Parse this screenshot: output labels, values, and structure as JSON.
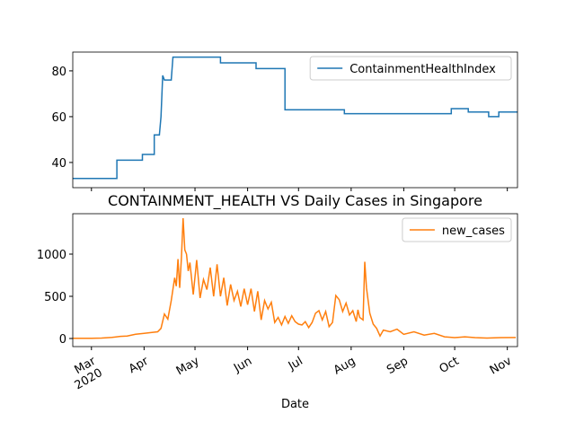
{
  "chart_data": [
    {
      "type": "line",
      "xlim": [
        "2020-02-19",
        "2020-11-07"
      ],
      "xticks": [
        "2020-03-01",
        "2020-04-01",
        "2020-05-01",
        "2020-06-01",
        "2020-07-01",
        "2020-08-01",
        "2020-09-01",
        "2020-10-01",
        "2020-11-01"
      ],
      "ylim": [
        29,
        88.2
      ],
      "yticks": [
        40,
        60,
        80
      ],
      "legend": "upper right",
      "x": [
        "2020-02-19",
        "2020-03-16",
        "2020-03-16",
        "2020-03-31",
        "2020-03-31",
        "2020-04-07",
        "2020-04-07",
        "2020-04-10",
        "2020-04-11",
        "2020-04-12",
        "2020-04-13",
        "2020-04-17",
        "2020-04-18",
        "2020-05-16",
        "2020-05-16",
        "2020-06-06",
        "2020-06-06",
        "2020-06-23",
        "2020-06-23",
        "2020-07-28",
        "2020-07-28",
        "2020-09-29",
        "2020-09-29",
        "2020-10-09",
        "2020-10-09",
        "2020-10-21",
        "2020-10-21",
        "2020-10-27",
        "2020-10-27",
        "2020-11-07"
      ],
      "series": [
        {
          "name": "ContainmentHealthIndex",
          "color": "#1f77b4",
          "values": [
            33,
            33,
            41,
            41,
            43.5,
            43.5,
            52,
            52,
            60,
            78,
            76,
            76,
            86,
            86,
            83.5,
            83.5,
            81,
            81,
            63,
            63,
            61.3,
            61.3,
            63.5,
            63.5,
            62,
            62,
            60,
            60,
            62,
            62
          ]
        }
      ]
    },
    {
      "type": "line",
      "title": "CONTAINMENT_HEALTH VS Daily Cases in Singapore",
      "xlabel": "Date",
      "xlim": [
        "2020-02-19",
        "2020-11-07"
      ],
      "xticks": [
        {
          "value": "2020-03-01",
          "label": "Mar\n2020"
        },
        {
          "value": "2020-04-01",
          "label": "Apr"
        },
        {
          "value": "2020-05-01",
          "label": "May"
        },
        {
          "value": "2020-06-01",
          "label": "Jun"
        },
        {
          "value": "2020-07-01",
          "label": "Jul"
        },
        {
          "value": "2020-08-01",
          "label": "Aug"
        },
        {
          "value": "2020-09-01",
          "label": "Sep"
        },
        {
          "value": "2020-10-01",
          "label": "Oct"
        },
        {
          "value": "2020-11-01",
          "label": "Nov"
        }
      ],
      "ylim": [
        -96,
        1479
      ],
      "yticks": [
        0,
        500,
        1000
      ],
      "legend": "upper right",
      "x": [
        "2020-02-19",
        "2020-02-25",
        "2020-03-01",
        "2020-03-07",
        "2020-03-13",
        "2020-03-18",
        "2020-03-22",
        "2020-03-27",
        "2020-04-01",
        "2020-04-05",
        "2020-04-09",
        "2020-04-11",
        "2020-04-13",
        "2020-04-15",
        "2020-04-17",
        "2020-04-19",
        "2020-04-20",
        "2020-04-21",
        "2020-04-22",
        "2020-04-23",
        "2020-04-24",
        "2020-04-25",
        "2020-04-26",
        "2020-04-27",
        "2020-04-28",
        "2020-04-30",
        "2020-05-02",
        "2020-05-04",
        "2020-05-06",
        "2020-05-08",
        "2020-05-10",
        "2020-05-12",
        "2020-05-14",
        "2020-05-16",
        "2020-05-18",
        "2020-05-20",
        "2020-05-22",
        "2020-05-24",
        "2020-05-26",
        "2020-05-28",
        "2020-05-30",
        "2020-06-01",
        "2020-06-03",
        "2020-06-05",
        "2020-06-07",
        "2020-06-09",
        "2020-06-11",
        "2020-06-13",
        "2020-06-15",
        "2020-06-17",
        "2020-06-19",
        "2020-06-21",
        "2020-06-23",
        "2020-06-25",
        "2020-06-27",
        "2020-06-29",
        "2020-07-01",
        "2020-07-03",
        "2020-07-05",
        "2020-07-07",
        "2020-07-09",
        "2020-07-11",
        "2020-07-13",
        "2020-07-15",
        "2020-07-17",
        "2020-07-19",
        "2020-07-21",
        "2020-07-23",
        "2020-07-25",
        "2020-07-27",
        "2020-07-29",
        "2020-07-31",
        "2020-08-02",
        "2020-08-04",
        "2020-08-05",
        "2020-08-06",
        "2020-08-08",
        "2020-08-09",
        "2020-08-10",
        "2020-08-12",
        "2020-08-14",
        "2020-08-16",
        "2020-08-18",
        "2020-08-20",
        "2020-08-24",
        "2020-08-28",
        "2020-09-01",
        "2020-09-07",
        "2020-09-13",
        "2020-09-19",
        "2020-09-25",
        "2020-10-01",
        "2020-10-07",
        "2020-10-13",
        "2020-10-20",
        "2020-10-28",
        "2020-11-06"
      ],
      "series": [
        {
          "name": "new_cases",
          "color": "#ff7f0e",
          "values": [
            3,
            2,
            2,
            5,
            13,
            25,
            30,
            50,
            60,
            70,
            80,
            120,
            290,
            230,
            450,
            720,
            620,
            940,
            600,
            950,
            1426,
            1050,
            1000,
            800,
            900,
            520,
            930,
            480,
            700,
            580,
            840,
            500,
            880,
            500,
            720,
            390,
            640,
            450,
            560,
            380,
            590,
            400,
            590,
            320,
            560,
            220,
            450,
            350,
            430,
            190,
            250,
            160,
            260,
            180,
            270,
            200,
            170,
            160,
            200,
            130,
            190,
            300,
            330,
            220,
            320,
            140,
            190,
            510,
            460,
            320,
            420,
            280,
            330,
            200,
            340,
            250,
            220,
            910,
            600,
            300,
            170,
            120,
            30,
            100,
            80,
            110,
            50,
            80,
            40,
            60,
            20,
            10,
            20,
            10,
            5,
            10,
            12
          ]
        }
      ]
    }
  ]
}
